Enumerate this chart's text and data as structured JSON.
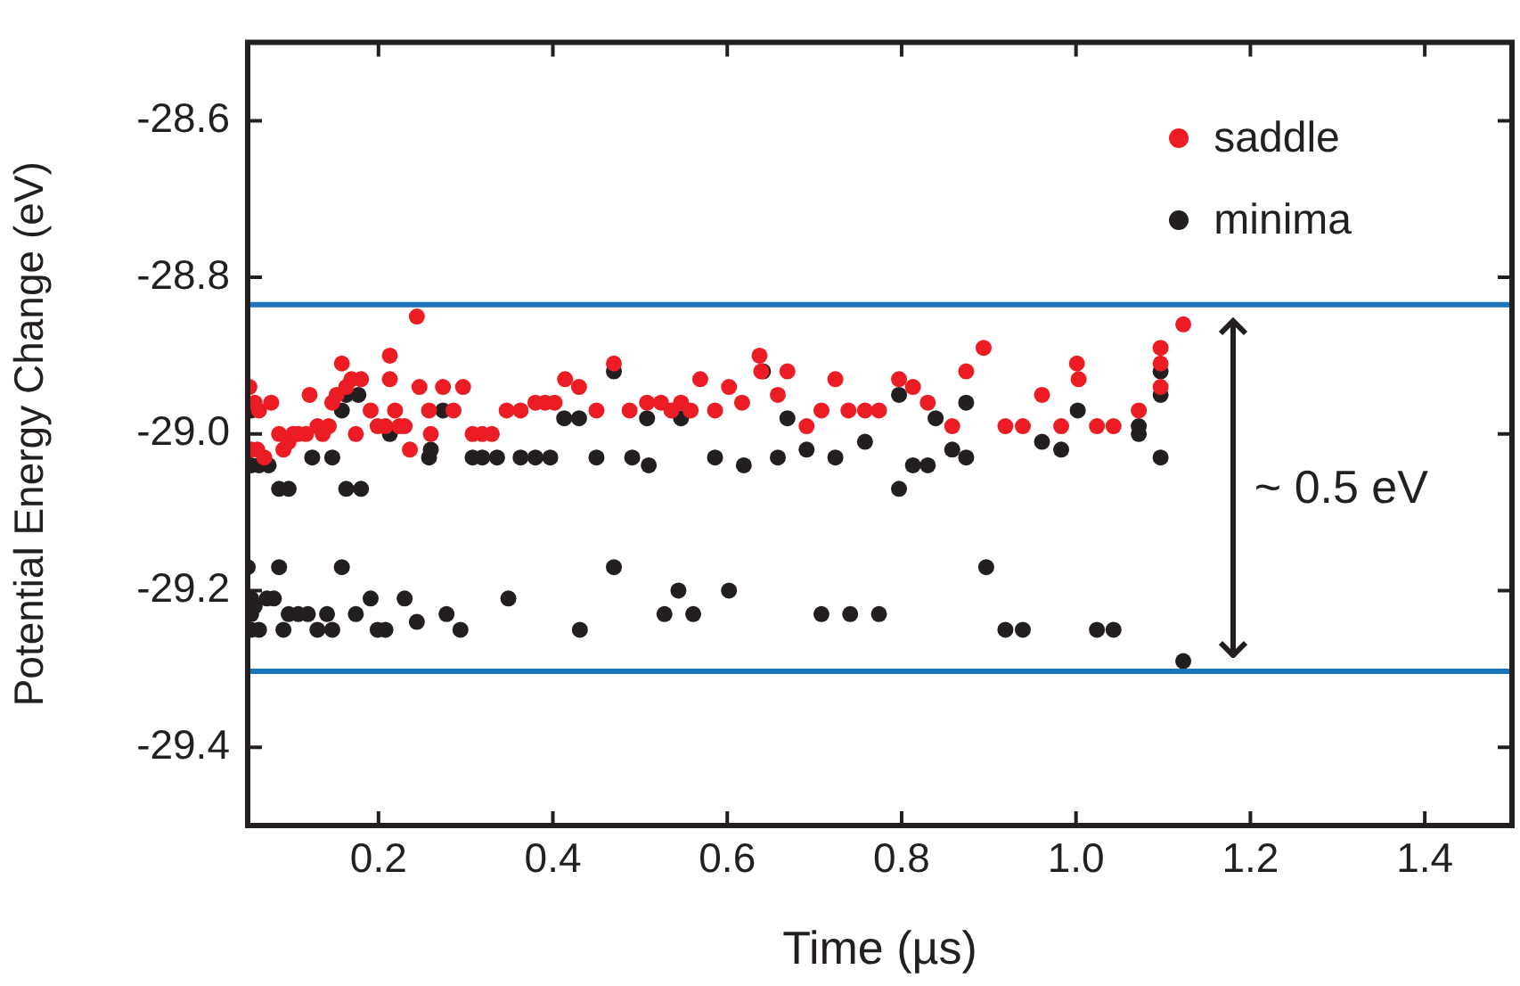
{
  "chart_data": {
    "type": "scatter",
    "xlabel": "Time (µs)",
    "ylabel": "Potential Energy Change (eV)",
    "xlim": [
      0.05,
      1.5
    ],
    "ylim": [
      -29.5,
      -28.5
    ],
    "xticks": [
      0.2,
      0.4,
      0.6,
      {
        "value": 0.8,
        "label": "0.8"
      },
      {
        "value": 1.0,
        "label": "1.0"
      },
      1.2,
      1.4
    ],
    "yticks": [
      -28.6,
      -28.8,
      {
        "value": -29.0,
        "label": "-29.0"
      },
      -29.2,
      -29.4
    ],
    "grid": false,
    "legend": "top right",
    "marker": "circle",
    "ref_lines": [
      {
        "axis": "y",
        "value": -28.835,
        "color": "#1b75bb"
      },
      {
        "axis": "y",
        "value": -29.303,
        "color": "#1b75bb"
      }
    ],
    "annotations": [
      "~ 0.5 eV"
    ],
    "series": [
      {
        "name": "saddle",
        "color": "#ec1c24",
        "x": [
          0.052,
          0.058,
          0.063,
          0.054,
          0.061,
          0.069,
          0.077,
          0.086,
          0.091,
          0.097,
          0.102,
          0.108,
          0.117,
          0.121,
          0.13,
          0.136,
          0.143,
          0.147,
          0.152,
          0.158,
          0.163,
          0.169,
          0.174,
          0.18,
          0.191,
          0.199,
          0.208,
          0.213,
          0.213,
          0.219,
          0.224,
          0.23,
          0.236,
          0.244,
          0.247,
          0.258,
          0.26,
          0.274,
          0.286,
          0.297,
          0.308,
          0.319,
          0.33,
          0.347,
          0.363,
          0.38,
          0.391,
          0.402,
          0.414,
          0.43,
          0.45,
          0.47,
          0.488,
          0.508,
          0.524,
          0.536,
          0.547,
          0.558,
          0.569,
          0.586,
          0.602,
          0.617,
          0.637,
          0.639,
          0.658,
          0.669,
          0.691,
          0.708,
          0.724,
          0.739,
          0.758,
          0.774,
          0.797,
          0.813,
          0.83,
          0.858,
          0.874,
          0.894,
          0.919,
          0.939,
          0.961,
          0.983,
          1.001,
          1.003,
          1.024,
          1.043,
          1.072,
          1.097,
          1.097,
          1.097,
          1.123
        ],
        "values": [
          -28.94,
          -28.96,
          -28.97,
          -29.02,
          -29.02,
          -29.03,
          -28.96,
          -29.0,
          -29.02,
          -29.01,
          -29.0,
          -29.0,
          -29.0,
          -28.95,
          -28.99,
          -29.0,
          -28.99,
          -28.96,
          -28.95,
          -28.91,
          -28.94,
          -28.93,
          -29.0,
          -28.93,
          -28.97,
          -28.99,
          -28.99,
          -28.9,
          -28.93,
          -28.97,
          -28.99,
          -28.99,
          -29.02,
          -28.85,
          -28.94,
          -28.97,
          -29.0,
          -28.94,
          -28.97,
          -28.94,
          -29.0,
          -29.0,
          -29.0,
          -28.97,
          -28.97,
          -28.96,
          -28.96,
          -28.96,
          -28.93,
          -28.94,
          -28.97,
          -28.91,
          -28.97,
          -28.96,
          -28.96,
          -28.97,
          -28.96,
          -28.97,
          -28.93,
          -28.97,
          -28.94,
          -28.96,
          -28.9,
          -28.92,
          -28.95,
          -28.92,
          -28.99,
          -28.97,
          -28.93,
          -28.97,
          -28.97,
          -28.97,
          -28.93,
          -28.94,
          -28.96,
          -28.99,
          -28.92,
          -28.89,
          -28.99,
          -28.99,
          -28.95,
          -28.99,
          -28.91,
          -28.93,
          -28.99,
          -28.99,
          -28.97,
          -28.89,
          -28.91,
          -28.94,
          -28.86
        ]
      },
      {
        "name": "minima",
        "color": "#231f20",
        "x": [
          0.054,
          0.054,
          0.063,
          0.074,
          0.086,
          0.097,
          0.05,
          0.054,
          0.054,
          0.054,
          0.063,
          0.058,
          0.072,
          0.086,
          0.08,
          0.091,
          0.097,
          0.108,
          0.119,
          0.13,
          0.141,
          0.147,
          0.124,
          0.147,
          0.158,
          0.163,
          0.177,
          0.163,
          0.18,
          0.158,
          0.174,
          0.191,
          0.199,
          0.208,
          0.213,
          0.23,
          0.244,
          0.258,
          0.26,
          0.274,
          0.278,
          0.294,
          0.308,
          0.319,
          0.336,
          0.349,
          0.363,
          0.38,
          0.397,
          0.413,
          0.43,
          0.45,
          0.431,
          0.47,
          0.47,
          0.491,
          0.51,
          0.508,
          0.528,
          0.544,
          0.561,
          0.547,
          0.586,
          0.602,
          0.619,
          0.641,
          0.658,
          0.669,
          0.691,
          0.708,
          0.724,
          0.741,
          0.758,
          0.774,
          0.797,
          0.797,
          0.813,
          0.83,
          0.839,
          0.858,
          0.874,
          0.874,
          0.897,
          0.919,
          0.939,
          0.961,
          0.983,
          1.002,
          1.024,
          1.043,
          1.072,
          1.072,
          1.097,
          1.097,
          1.097,
          1.123
        ],
        "values": [
          -28.97,
          -29.04,
          -29.04,
          -29.04,
          -29.07,
          -29.07,
          -29.17,
          -29.21,
          -29.23,
          -29.25,
          -29.25,
          -29.22,
          -29.21,
          -29.17,
          -29.21,
          -29.25,
          -29.23,
          -29.23,
          -29.23,
          -29.25,
          -29.23,
          -29.25,
          -29.03,
          -29.03,
          -28.97,
          -28.95,
          -28.95,
          -29.07,
          -29.07,
          -29.17,
          -29.23,
          -29.21,
          -29.25,
          -29.25,
          -29.0,
          -29.21,
          -29.24,
          -29.03,
          -29.02,
          -28.97,
          -29.23,
          -29.25,
          -29.03,
          -29.03,
          -29.03,
          -29.21,
          -29.03,
          -29.03,
          -29.03,
          -28.98,
          -28.98,
          -29.03,
          -29.25,
          -28.92,
          -29.17,
          -29.03,
          -29.04,
          -28.98,
          -29.23,
          -29.2,
          -29.23,
          -28.98,
          -29.03,
          -29.2,
          -29.04,
          -28.92,
          -29.03,
          -28.98,
          -29.02,
          -29.23,
          -29.03,
          -29.23,
          -29.01,
          -29.23,
          -29.07,
          -28.95,
          -29.04,
          -29.04,
          -28.98,
          -29.02,
          -29.03,
          -28.96,
          -29.17,
          -29.25,
          -29.25,
          -29.01,
          -29.02,
          -28.97,
          -29.25,
          -29.25,
          -28.99,
          -29.0,
          -29.03,
          -28.95,
          -28.92,
          -29.29
        ]
      }
    ]
  }
}
